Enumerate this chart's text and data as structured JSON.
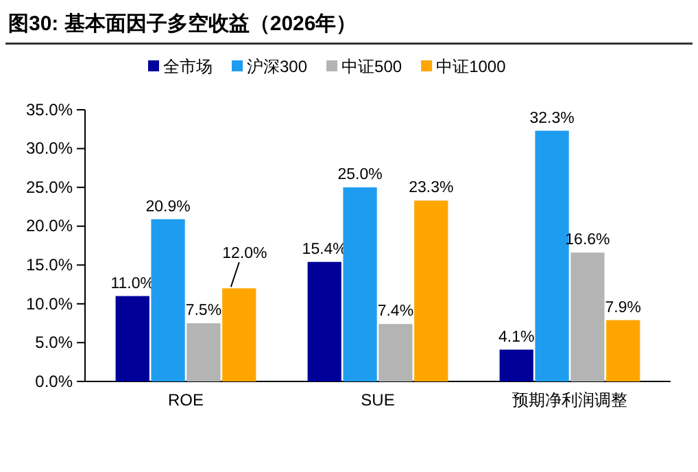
{
  "chart_data": {
    "type": "bar",
    "title": "图30:  基本面因子多空收益（2026年）",
    "categories": [
      "ROE",
      "SUE",
      "预期净利润调整"
    ],
    "series": [
      {
        "name": "全市场",
        "color": "#000099",
        "values": [
          11.0,
          15.4,
          4.1
        ]
      },
      {
        "name": "沪深300",
        "color": "#1e9cf0",
        "values": [
          20.9,
          25.0,
          32.3
        ]
      },
      {
        "name": "中证500",
        "color": "#b4b4b4",
        "values": [
          7.5,
          7.4,
          16.6
        ]
      },
      {
        "name": "中证1000",
        "color": "#ffa500",
        "values": [
          12.0,
          23.3,
          7.9
        ]
      }
    ],
    "ylim": [
      0,
      35
    ],
    "yticks": [
      {
        "value": 0,
        "label": "0.0%"
      },
      {
        "value": 5,
        "label": "5.0%"
      },
      {
        "value": 10,
        "label": "10.0%"
      },
      {
        "value": 15,
        "label": "15.0%"
      },
      {
        "value": 20,
        "label": "20.0%"
      },
      {
        "value": 25,
        "label": "25.0%"
      },
      {
        "value": 30,
        "label": "30.0%"
      },
      {
        "value": 35,
        "label": "35.0%"
      }
    ],
    "value_labels": [
      [
        "11.0%",
        "15.4%",
        "4.1%"
      ],
      [
        "20.9%",
        "25.0%",
        "32.3%"
      ],
      [
        "7.5%",
        "7.4%",
        "16.6%"
      ],
      [
        "12.0%",
        "23.3%",
        "7.9%"
      ]
    ],
    "legend": "top",
    "grid": false
  }
}
